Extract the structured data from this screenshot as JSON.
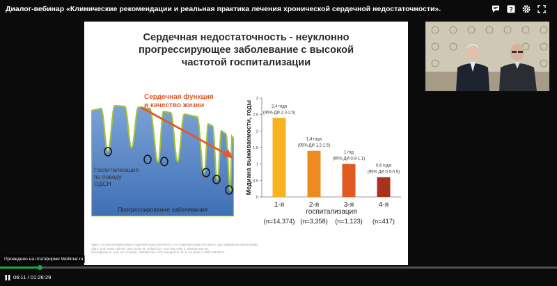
{
  "header": {
    "title": "Диалог-вебинар «Клинические рекомендации и реальная практика лечения хронической сердечной недостаточности».",
    "icons": [
      "chat-icon",
      "help-icon",
      "settings-icon",
      "fullscreen-icon"
    ]
  },
  "slide": {
    "title_lines": [
      "Сердечная недостаточность - неуклонно",
      "прогрессирующее заболевание с высокой",
      "частотой госпитализации"
    ],
    "left_figure": {
      "function_lines": [
        "Сердечная функция",
        "и качество жизни"
      ],
      "hospitalization_lines": [
        "Госпитализация",
        "по поводу",
        "ОДСН"
      ],
      "x_label": "Прогрессирование заболевания"
    },
    "footnote_lines": [
      "ОДСН: острая декомпенсация сердечной недостаточности; СН: сердечная недостаточность; ДИ: доверительный интервал",
      "Alla F, et al. Heart Fail Rev. 2007;12:91–5; Cleland J.R. et al. Eur Heart J. 2003;24:442–36;",
      "Gheorghiade M. et al. Am J Cardiol. 2005;96:11G–17G; Setoguchi S. et al. Am Heart J. 2007;154:260-6"
    ]
  },
  "chart_data": {
    "type": "bar",
    "ylabel": "Медиана выживаемости, годы",
    "xlabel": "госпитализация",
    "ylim": [
      0,
      3
    ],
    "yticks": [
      "0",
      "0.5",
      "1",
      "1.5",
      "2",
      "2.5",
      "3"
    ],
    "categories": [
      "1-я",
      "2-я",
      "3-я",
      "4-я"
    ],
    "values": [
      2.4,
      1.4,
      1.0,
      0.6
    ],
    "value_labels": [
      [
        "2,4 года",
        "(95% ДИ 2.3-2.5)"
      ],
      [
        "1,4 года",
        "(95% ДИ 1.2-1.5)"
      ],
      [
        "1 год",
        "(95% ДИ 0,9-1.1)"
      ],
      [
        "0,6 года",
        "(95% ДИ 0.5-0,9)"
      ]
    ],
    "counts": [
      "(n=14,374)",
      "(n=3,358)",
      "(n=1,123)",
      "(n=417)"
    ],
    "colors": [
      "#f7b321",
      "#ee8a22",
      "#e05a22",
      "#a8321e"
    ],
    "grid": false,
    "legend": "none"
  },
  "player": {
    "platform_label": "Проведено на платформе Webinar.ru",
    "time": "06:11 / 01:26:29",
    "progress": 0.0715,
    "accent": "#1aa64a"
  }
}
